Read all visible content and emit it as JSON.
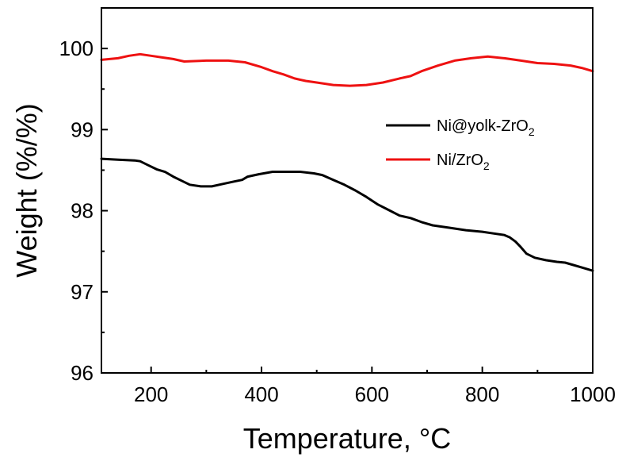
{
  "chart_data": {
    "type": "line",
    "xlabel": "Temperature, ",
    "xlabel_unit": "°C",
    "ylabel": "Weight (%/%)",
    "xlim": [
      110,
      1000
    ],
    "ylim": [
      96,
      100.5
    ],
    "xticks": [
      200,
      400,
      600,
      800,
      1000
    ],
    "yticks": [
      96,
      97,
      98,
      99,
      100
    ],
    "xtick_labels": [
      "200",
      "400",
      "600",
      "800",
      "1000"
    ],
    "ytick_labels": [
      "96",
      "97",
      "98",
      "99",
      "100"
    ],
    "legend_placement": "right",
    "series": [
      {
        "name": "Ni@yolk-ZrO",
        "name_subscript": "2",
        "color": "#000000",
        "x": [
          110,
          140,
          170,
          180,
          195,
          210,
          225,
          240,
          255,
          270,
          290,
          310,
          330,
          350,
          365,
          375,
          395,
          420,
          445,
          470,
          495,
          510,
          530,
          550,
          570,
          590,
          610,
          630,
          650,
          670,
          690,
          710,
          740,
          770,
          800,
          820,
          840,
          850,
          860,
          870,
          880,
          895,
          915,
          935,
          950,
          965,
          980,
          1000
        ],
        "y": [
          98.64,
          98.63,
          98.62,
          98.61,
          98.56,
          98.51,
          98.48,
          98.42,
          98.37,
          98.32,
          98.3,
          98.3,
          98.33,
          98.36,
          98.38,
          98.42,
          98.45,
          98.48,
          98.48,
          98.48,
          98.46,
          98.44,
          98.38,
          98.32,
          98.25,
          98.17,
          98.08,
          98.01,
          97.94,
          97.91,
          97.86,
          97.82,
          97.79,
          97.76,
          97.74,
          97.72,
          97.7,
          97.67,
          97.62,
          97.55,
          97.47,
          97.42,
          97.39,
          97.37,
          97.36,
          97.33,
          97.3,
          97.26
        ]
      },
      {
        "name": "Ni/ZrO",
        "name_subscript": "2",
        "color": "#ee1111",
        "x": [
          110,
          140,
          160,
          180,
          200,
          220,
          240,
          260,
          300,
          340,
          370,
          400,
          420,
          440,
          460,
          480,
          500,
          530,
          560,
          590,
          620,
          650,
          670,
          690,
          720,
          750,
          780,
          810,
          840,
          870,
          900,
          930,
          960,
          980,
          1000
        ],
        "y": [
          99.86,
          99.88,
          99.91,
          99.93,
          99.91,
          99.89,
          99.87,
          99.84,
          99.85,
          99.85,
          99.83,
          99.77,
          99.72,
          99.68,
          99.63,
          99.6,
          99.58,
          99.55,
          99.54,
          99.55,
          99.58,
          99.63,
          99.66,
          99.72,
          99.79,
          99.85,
          99.88,
          99.9,
          99.88,
          99.85,
          99.82,
          99.81,
          99.79,
          99.76,
          99.72
        ]
      }
    ]
  }
}
